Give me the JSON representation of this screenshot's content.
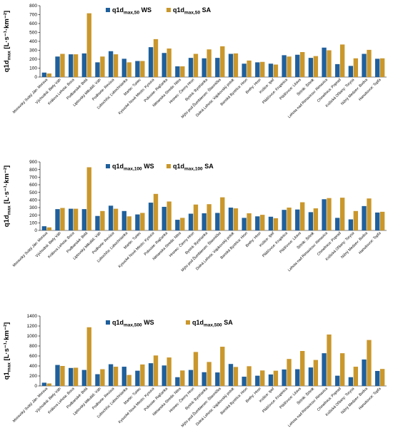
{
  "colors": {
    "ws": "#1f5f9b",
    "sa": "#c9972c"
  },
  "categories": [
    "Moravský Svätý Ján: Morava",
    "Východná: Biely Váh",
    "Králova Lehota: Boca",
    "Podbanské: Belá",
    "Liptovský Mikuláš: Váh",
    "Podhorie: Revúca",
    "Ľubochňa: Ľubochnianka",
    "Martin: Turiec",
    "Kysucké Nové Mesto: Kysuca",
    "Poluvsie: Rajčanka",
    "Nitrianska Streda: Nitra",
    "Hronec: Čierny Hron",
    "Bystrá: Bystrianka",
    "Mýto pod Ďumbierom: Štiavnička",
    "Dolná Lehota: Vajskovský potok",
    "Banská Bystrica: Hron",
    "Brehy: Hron",
    "Košice: Ipeľ",
    "Plášťovce: Krupinica",
    "Plášťovce: Litava",
    "Štítnik: Štítnik",
    "Lehota nad Rimavicou: Rimavica",
    "Chmeľnica: Poprad",
    "Košická Oľšany: Torysa",
    "Nižný Medzev: Bodva",
    "Hanušovce: Topľa"
  ],
  "chart_data": [
    {
      "type": "bar",
      "ylabel_main": "q1d",
      "ylabel_sub": "max",
      "ylabel_unit": " [L·s⁻¹·km⁻²]",
      "ylim": [
        0,
        800
      ],
      "yticks": [
        0,
        100,
        200,
        300,
        400,
        500,
        600,
        700,
        800
      ],
      "legend_position": "top-left",
      "series": [
        {
          "name_main": "q1d",
          "name_sub": "max,50",
          "name_tail": " WS",
          "values": [
            50,
            230,
            255,
            265,
            165,
            290,
            205,
            180,
            335,
            270,
            120,
            215,
            210,
            215,
            260,
            150,
            165,
            150,
            245,
            250,
            215,
            330,
            145,
            125,
            260,
            205
          ]
        },
        {
          "name_main": "q1d",
          "name_sub": "max,50",
          "name_tail": " SA",
          "values": [
            40,
            260,
            255,
            715,
            230,
            255,
            165,
            180,
            425,
            320,
            120,
            260,
            310,
            345,
            265,
            185,
            170,
            140,
            230,
            280,
            235,
            300,
            365,
            210,
            305,
            210
          ]
        }
      ]
    },
    {
      "type": "bar",
      "ylabel_main": "q1d",
      "ylabel_sub": "max",
      "ylabel_unit": " [L·s⁻¹·km⁻²]",
      "ylim": [
        0,
        900
      ],
      "yticks": [
        0,
        100,
        200,
        300,
        400,
        500,
        600,
        700,
        800,
        900
      ],
      "legend_position": "top-left",
      "series": [
        {
          "name_main": "q1d",
          "name_sub": "max,100",
          "name_tail": " WS",
          "values": [
            55,
            280,
            285,
            280,
            190,
            325,
            255,
            210,
            365,
            310,
            140,
            220,
            225,
            230,
            300,
            165,
            185,
            180,
            270,
            275,
            240,
            410,
            165,
            145,
            320,
            235
          ]
        },
        {
          "name_main": "q1d",
          "name_sub": "max,100",
          "name_tail": " SA",
          "values": [
            40,
            295,
            285,
            830,
            255,
            285,
            185,
            230,
            480,
            380,
            165,
            340,
            345,
            435,
            290,
            225,
            205,
            160,
            300,
            370,
            290,
            425,
            430,
            255,
            420,
            245
          ]
        }
      ]
    },
    {
      "type": "bar",
      "ylabel_main": "q1",
      "ylabel_sub": "max",
      "ylabel_unit": " [L·s⁻¹·km⁻²]",
      "ylim": [
        0,
        1400
      ],
      "yticks": [
        0,
        200,
        400,
        600,
        800,
        1000,
        1200,
        1400
      ],
      "legend_position": "top-left",
      "series": [
        {
          "name_main": "q1d",
          "name_sub": "max,500",
          "name_tail": " WS",
          "values": [
            65,
            420,
            360,
            320,
            235,
            435,
            385,
            305,
            455,
            410,
            175,
            320,
            275,
            270,
            440,
            185,
            205,
            230,
            330,
            335,
            370,
            655,
            205,
            175,
            530,
            300
          ]
        },
        {
          "name_main": "q1d",
          "name_sub": "max,500",
          "name_tail": " SA",
          "values": [
            50,
            400,
            365,
            1175,
            335,
            385,
            220,
            430,
            610,
            570,
            310,
            680,
            480,
            785,
            380,
            395,
            310,
            305,
            540,
            700,
            520,
            1030,
            655,
            385,
            920,
            340
          ]
        }
      ]
    }
  ]
}
